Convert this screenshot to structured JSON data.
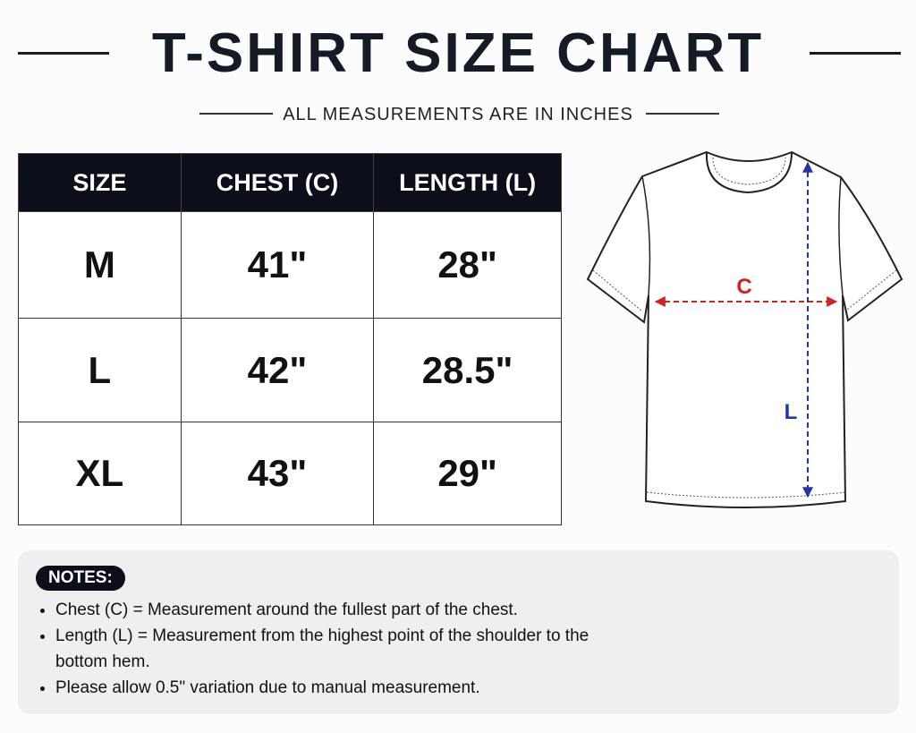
{
  "header": {
    "title": "T-SHIRT SIZE CHART",
    "subtitle": "ALL MEASUREMENTS ARE IN INCHES"
  },
  "table": {
    "headers": [
      "SIZE",
      "CHEST (C)",
      "LENGTH (L)"
    ],
    "rows": [
      [
        "M",
        "41\"",
        "28\""
      ],
      [
        "L",
        "42\"",
        "28.5\""
      ],
      [
        "XL",
        "43\"",
        "29\""
      ]
    ]
  },
  "diagram": {
    "chest_label": "C",
    "length_label": "L"
  },
  "notes": {
    "title": "NOTES:",
    "items": [
      "Chest (C)  =  Measurement around the fullest part of the chest.",
      "Length (L) = Measurement from the highest point of the shoulder to the bottom hem.",
      "Please allow 0.5\" variation due to manual measurement."
    ]
  }
}
